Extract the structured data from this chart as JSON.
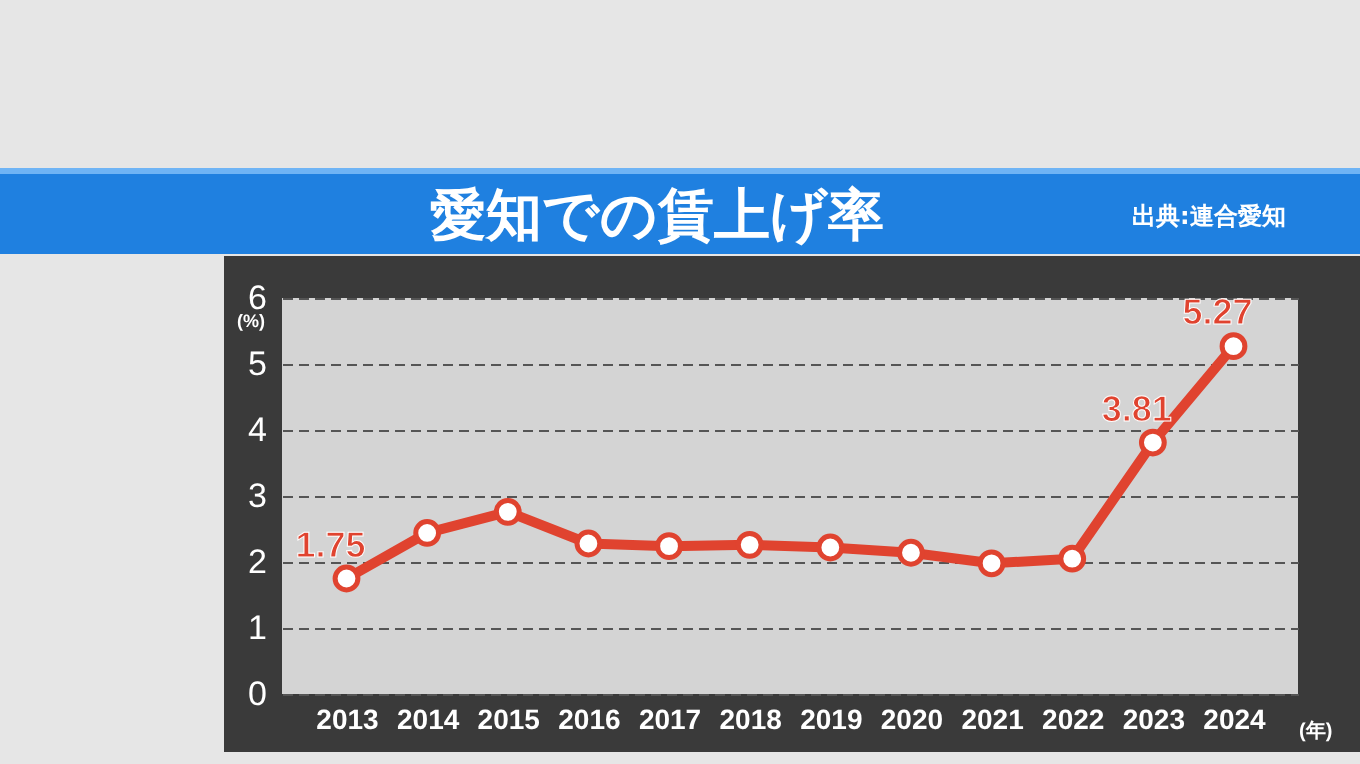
{
  "chart_data": {
    "type": "line",
    "title": "愛知での賃上げ率",
    "annotations": [
      "出典:連合愛知"
    ],
    "ylabel": "(%)",
    "xlabel": "(年)",
    "categories": [
      "2013",
      "2014",
      "2015",
      "2016",
      "2017",
      "2018",
      "2019",
      "2020",
      "2021",
      "2022",
      "2023",
      "2024"
    ],
    "series": [
      {
        "color": "#e0432f",
        "values": [
          1.75,
          2.44,
          2.76,
          2.28,
          2.24,
          2.26,
          2.22,
          2.14,
          1.98,
          2.05,
          3.81,
          5.27
        ],
        "value_labels": [
          "1.75",
          null,
          null,
          null,
          null,
          null,
          null,
          null,
          null,
          null,
          "3.81",
          "5.27"
        ]
      }
    ],
    "ylim": [
      0,
      6
    ],
    "yticks": [
      0,
      1,
      2,
      3,
      4,
      5,
      6
    ],
    "grid": "y",
    "marker": "circle",
    "line_style": "solid"
  }
}
